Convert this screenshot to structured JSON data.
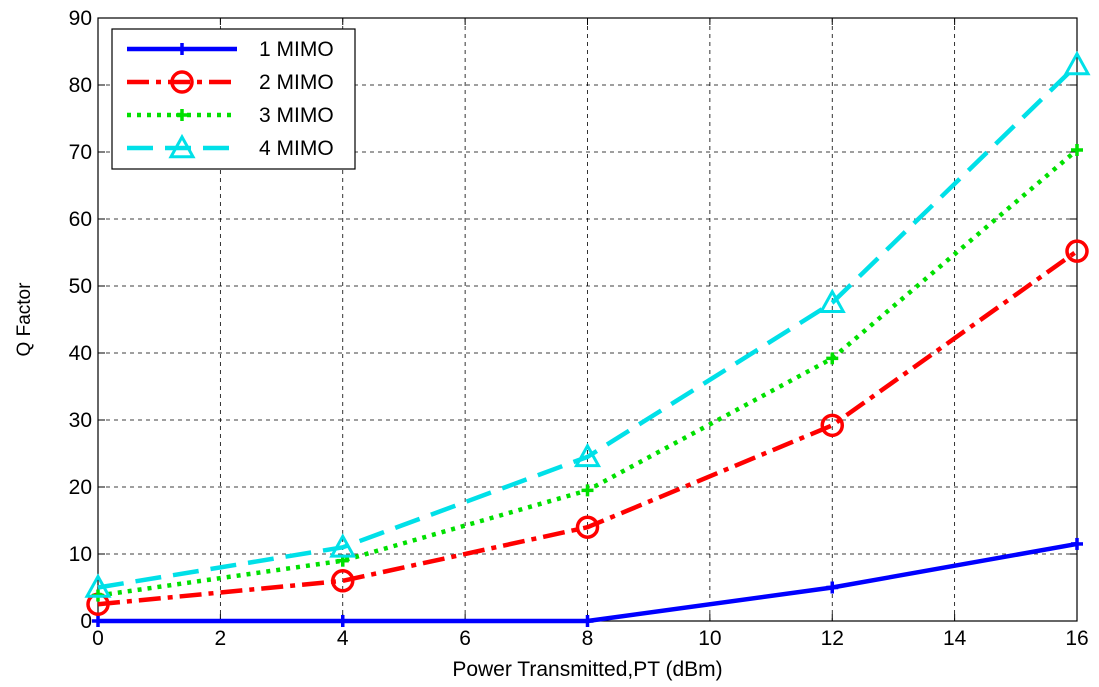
{
  "chart_data": {
    "type": "line",
    "title": "",
    "xlabel": "Power Transmitted,PT (dBm)",
    "ylabel": "Q Factor",
    "xlim": [
      0,
      16
    ],
    "ylim": [
      0,
      90
    ],
    "x_ticks": [
      0,
      2,
      4,
      6,
      8,
      10,
      12,
      14,
      16
    ],
    "y_ticks": [
      0,
      10,
      20,
      30,
      40,
      50,
      60,
      70,
      80,
      90
    ],
    "grid": true,
    "legend_position": "top-left",
    "x": [
      0,
      4,
      8,
      12,
      16
    ],
    "series": [
      {
        "name": "1 MIMO",
        "values": [
          0,
          0,
          0,
          5,
          11.5
        ],
        "color": "#0000ff",
        "line": "solid",
        "marker": "plus"
      },
      {
        "name": "2 MIMO",
        "values": [
          2.5,
          6,
          14,
          29.2,
          55.2
        ],
        "color": "#ff0000",
        "line": "dashdot",
        "marker": "circle"
      },
      {
        "name": "3 MIMO",
        "values": [
          3.8,
          9,
          19.5,
          39.2,
          70.3
        ],
        "color": "#00e000",
        "line": "dotted",
        "marker": "plus"
      },
      {
        "name": "4 MIMO",
        "values": [
          5,
          11,
          24.5,
          47.5,
          83
        ],
        "color": "#00e0e8",
        "line": "dashed",
        "marker": "triangle"
      }
    ]
  }
}
